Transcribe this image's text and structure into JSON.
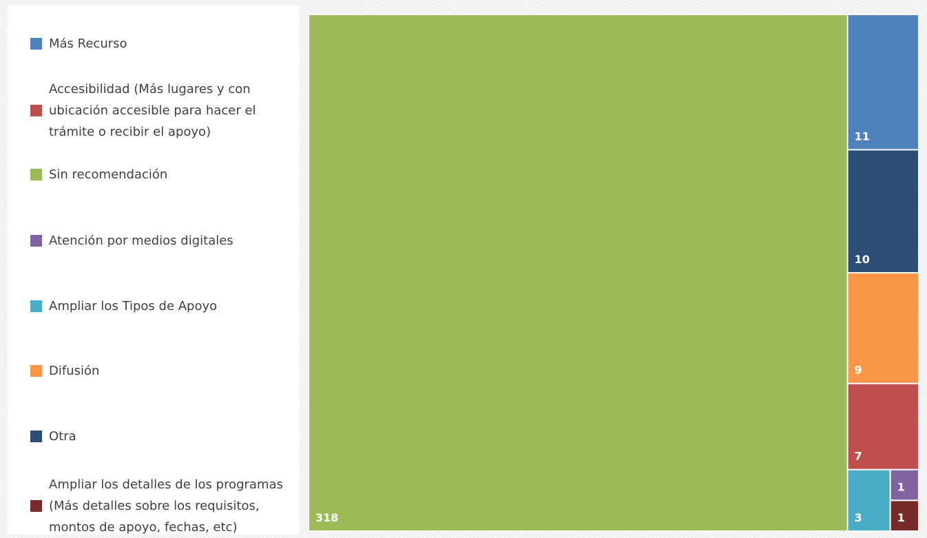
{
  "chart_data": {
    "type": "treemap",
    "title": "",
    "legend_position": "left",
    "items": [
      {
        "name": "Sin recomendación",
        "value": 318,
        "color": "#9bbb59",
        "label_color": "#ffffff"
      },
      {
        "name": "Más Recurso",
        "value": 11,
        "color": "#4f81bd",
        "label_color": "#ffffff"
      },
      {
        "name": "Otra",
        "value": 10,
        "color": "#2c4d75",
        "label_color": "#ffffff"
      },
      {
        "name": "Difusión",
        "value": 9,
        "color": "#f79646",
        "label_color": "#ffffff"
      },
      {
        "name": "Accesibilidad (Más lugares y con ubicación accesible para hacer el trámite o recibir el apoyo)",
        "value": 7,
        "color": "#c0504d",
        "label_color": "#ffffff"
      },
      {
        "name": "Ampliar los Tipos de Apoyo",
        "value": 3,
        "color": "#4bacc6",
        "label_color": "#ffffff"
      },
      {
        "name": "Atención por medios digitales",
        "value": 1,
        "color": "#8064a2",
        "label_color": "#ffffff"
      },
      {
        "name": "Ampliar los detalles de los programas (Más detalles sobre los requisitos, montos de apoyo, fechas, etc)",
        "value": 1,
        "color": "#772c2a",
        "label_color": "#ffffff"
      }
    ],
    "legend_order": [
      "Más Recurso",
      "Accesibilidad (Más lugares y con ubicación accesible para hacer el trámite o recibir el apoyo)",
      "Sin recomendación",
      "Atención por medios digitales",
      "Ampliar los Tipos de Apoyo",
      "Difusión",
      "Otra",
      "Ampliar los detalles de los programas (Más detalles sobre los requisitos, montos de apoyo, fechas, etc)"
    ]
  }
}
